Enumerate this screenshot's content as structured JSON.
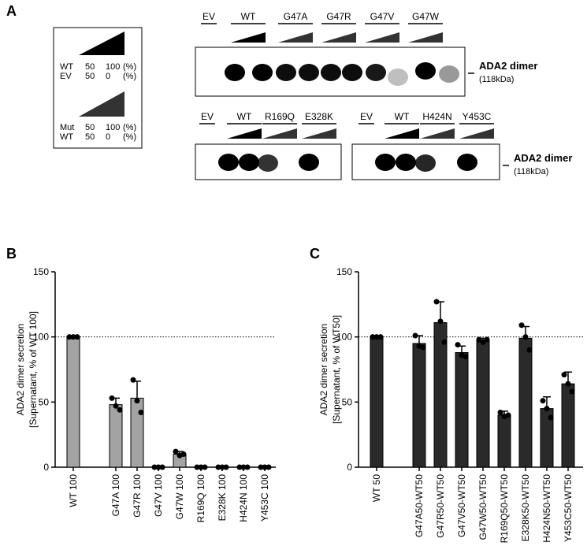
{
  "panel_a": {
    "label": "A",
    "legend": {
      "upper": [
        [
          "WT",
          "50",
          "100",
          "(%)"
        ],
        [
          "EV",
          "50",
          "0",
          "(%)"
        ]
      ],
      "lower": [
        [
          "Mut",
          "50",
          "100",
          "(%)"
        ],
        [
          "WT",
          "50",
          "0",
          "(%)"
        ]
      ]
    },
    "blot_top": {
      "lanes": [
        "EV",
        "WT",
        "G47A",
        "G47R",
        "G47V",
        "G47W"
      ],
      "band_label": "ADA2 dimer",
      "band_size": "(118kDa)"
    },
    "blot_left": {
      "lanes": [
        "EV",
        "WT",
        "R169Q",
        "E328K"
      ]
    },
    "blot_right": {
      "lanes": [
        "EV",
        "WT",
        "H424N",
        "Y453C"
      ],
      "band_label": "ADA2 dimer",
      "band_size": "(118kDa)"
    }
  },
  "chart_data": [
    {
      "type": "bar",
      "title": "B",
      "ylabel": [
        "ADA2 dimer secretion",
        "[Supernatant, % of WT 100]"
      ],
      "categories": [
        "WT 100",
        null,
        "G47A 100",
        "G47R 100",
        "G47V 100",
        "G47W 100",
        "R169Q 100",
        "E328K 100",
        "H424N 100",
        "Y453C 100"
      ],
      "values": [
        100,
        null,
        48,
        53,
        0,
        10,
        0,
        0,
        0,
        0
      ],
      "errors": [
        0,
        null,
        5,
        13,
        0,
        2,
        0,
        0,
        0,
        0
      ],
      "points": [
        [
          100,
          100,
          100
        ],
        null,
        [
          53,
          47,
          44
        ],
        [
          67,
          51,
          42
        ],
        [
          0,
          0,
          0
        ],
        [
          12,
          9,
          10
        ],
        [
          0,
          0,
          0
        ],
        [
          0,
          0,
          0
        ],
        [
          0,
          0,
          0
        ],
        [
          0,
          0,
          0
        ]
      ],
      "color": "#a3a3a3",
      "ylim": [
        0,
        150
      ],
      "yticks": [
        0,
        50,
        100,
        150
      ],
      "reference_line": 100
    },
    {
      "type": "bar",
      "title": "C",
      "ylabel": [
        "ADA2 dimer secretion",
        "[Supernatant, % of WT50]"
      ],
      "categories": [
        "WT 50",
        null,
        "G47A50-WT50",
        "G47R50-WT50",
        "G47V50-WT50",
        "G47W50-WT50",
        "R169Q50-WT50",
        "E328K50-WT50",
        "H424N50-WT50",
        "Y453C50-WT50"
      ],
      "values": [
        100,
        null,
        95,
        111,
        88,
        97,
        40,
        99,
        45,
        64
      ],
      "errors": [
        0,
        null,
        6,
        16,
        5,
        2,
        3,
        9,
        9,
        9
      ],
      "points": [
        [
          100,
          100,
          100
        ],
        null,
        [
          101,
          93,
          92
        ],
        [
          127,
          112,
          96
        ],
        [
          94,
          86,
          85
        ],
        [
          98,
          96,
          98
        ],
        [
          42,
          39,
          40
        ],
        [
          109,
          100,
          90
        ],
        [
          51,
          45,
          38
        ],
        [
          71,
          64,
          58
        ]
      ],
      "color": "#2a2a2a",
      "ylim": [
        0,
        150
      ],
      "yticks": [
        0,
        50,
        100,
        150
      ],
      "reference_line": 100
    }
  ]
}
